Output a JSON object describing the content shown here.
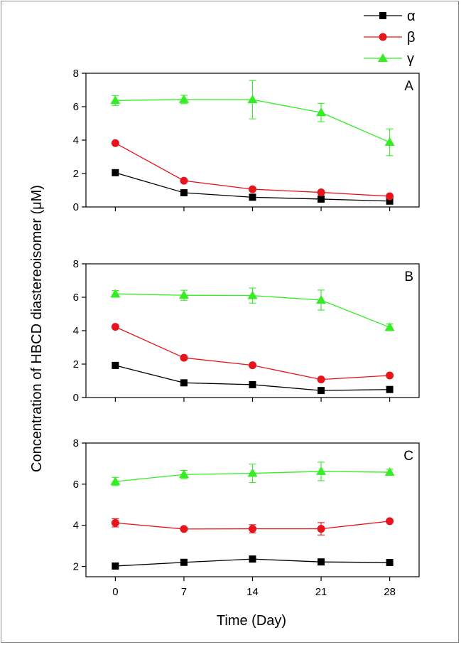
{
  "chart_data": {
    "type": "line",
    "ylabel": "Concentration of HBCD diastereoisomer (μM)",
    "xlabel": "Time (Day)",
    "x": [
      0,
      7,
      14,
      21,
      28
    ],
    "x_tick_labels": [
      "0",
      "7",
      "14",
      "21",
      "28"
    ],
    "xlim": [
      -3,
      31
    ],
    "legend": {
      "position": "top-right",
      "entries": [
        {
          "name": "α",
          "color": "#000000",
          "marker": "square"
        },
        {
          "name": "β",
          "color": "#e8141b",
          "marker": "circle"
        },
        {
          "name": "γ",
          "color": "#33ee22",
          "marker": "triangle"
        }
      ]
    },
    "panels": [
      {
        "label": "A",
        "ylim": [
          0,
          8
        ],
        "y_ticks": [
          0,
          2,
          4,
          6,
          8
        ],
        "series": [
          {
            "name": "α",
            "values": [
              2.05,
              0.85,
              0.58,
              0.47,
              0.35
            ],
            "errors": [
              0.05,
              0.05,
              0.05,
              0.05,
              0.05
            ]
          },
          {
            "name": "β",
            "values": [
              3.82,
              1.57,
              1.06,
              0.87,
              0.64
            ],
            "errors": [
              0.05,
              0.05,
              0.05,
              0.05,
              0.05
            ]
          },
          {
            "name": "γ",
            "values": [
              6.37,
              6.43,
              6.42,
              5.65,
              3.87
            ],
            "errors": [
              0.3,
              0.25,
              1.15,
              0.55,
              0.8
            ]
          }
        ]
      },
      {
        "label": "B",
        "ylim": [
          0,
          8
        ],
        "y_ticks": [
          0,
          2,
          4,
          6,
          8
        ],
        "series": [
          {
            "name": "α",
            "values": [
              1.92,
              0.88,
              0.77,
              0.42,
              0.48
            ],
            "errors": [
              0.05,
              0.05,
              0.05,
              0.05,
              0.05
            ]
          },
          {
            "name": "β",
            "values": [
              4.23,
              2.38,
              1.93,
              1.08,
              1.32
            ],
            "errors": [
              0.05,
              0.05,
              0.05,
              0.05,
              0.05
            ]
          },
          {
            "name": "γ",
            "values": [
              6.2,
              6.12,
              6.1,
              5.83,
              4.2
            ],
            "errors": [
              0.2,
              0.3,
              0.45,
              0.6,
              0.2
            ]
          }
        ]
      },
      {
        "label": "C",
        "ylim": [
          1.5,
          8
        ],
        "y_ticks": [
          2,
          4,
          6,
          8
        ],
        "series": [
          {
            "name": "α",
            "values": [
              2.02,
              2.2,
              2.36,
              2.22,
              2.19
            ],
            "errors": [
              0.05,
              0.05,
              0.05,
              0.05,
              0.05
            ]
          },
          {
            "name": "β",
            "values": [
              4.12,
              3.82,
              3.83,
              3.83,
              4.2
            ],
            "errors": [
              0.2,
              0.05,
              0.2,
              0.3,
              0.05
            ]
          },
          {
            "name": "γ",
            "values": [
              6.13,
              6.47,
              6.53,
              6.62,
              6.58
            ],
            "errors": [
              0.2,
              0.2,
              0.45,
              0.45,
              0.15
            ]
          }
        ]
      }
    ]
  }
}
